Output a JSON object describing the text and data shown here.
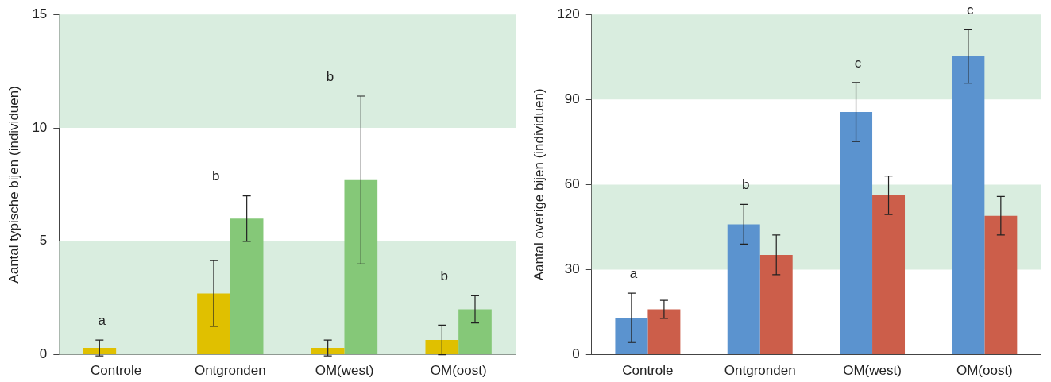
{
  "chart_data": [
    {
      "type": "bar",
      "ylabel": "Aantal typische bijen (individuen)",
      "categories": [
        "Controle",
        "Ontgronden",
        "OM(west)",
        "OM(oost)"
      ],
      "series": [
        {
          "color": "#e0c000",
          "values": [
            0.3,
            2.7,
            0.3,
            0.65
          ],
          "errors": [
            0.35,
            1.45,
            0.35,
            0.65
          ]
        },
        {
          "color": "#85c878",
          "values": [
            0,
            6.0,
            7.7,
            2.0
          ],
          "errors": [
            null,
            1.0,
            3.7,
            0.6
          ]
        }
      ],
      "ylim": [
        0,
        15
      ],
      "yticks": [
        0,
        5,
        10,
        15
      ],
      "bands": [
        {
          "axis": "y",
          "from": 0,
          "to": 5,
          "color": "#d9eddf"
        },
        {
          "axis": "y",
          "from": 10,
          "to": 15,
          "color": "#d9eddf"
        }
      ],
      "annotations": [
        "a",
        "b",
        "b",
        "b"
      ]
    },
    {
      "type": "bar",
      "ylabel": "Aantal overige bijen (individuen)",
      "categories": [
        "Controle",
        "Ontgronden",
        "OM(west)",
        "OM(oost)"
      ],
      "series": [
        {
          "color": "#5b93cf",
          "values": [
            13,
            46,
            85.6,
            105.2
          ],
          "errors": [
            8.7,
            7,
            10.4,
            9.4
          ]
        },
        {
          "color": "#cc5e4a",
          "values": [
            16,
            35.2,
            56.2,
            49
          ],
          "errors": [
            3.2,
            7,
            6.8,
            6.8
          ]
        }
      ],
      "ylim": [
        0,
        120
      ],
      "yticks": [
        0,
        30,
        60,
        90,
        120
      ],
      "bands": [
        {
          "axis": "y",
          "from": 30,
          "to": 60,
          "color": "#d9eddf"
        },
        {
          "axis": "y",
          "from": 90,
          "to": 120,
          "color": "#d9eddf"
        }
      ],
      "annotations": [
        "a",
        "b",
        "c",
        "c"
      ]
    }
  ]
}
